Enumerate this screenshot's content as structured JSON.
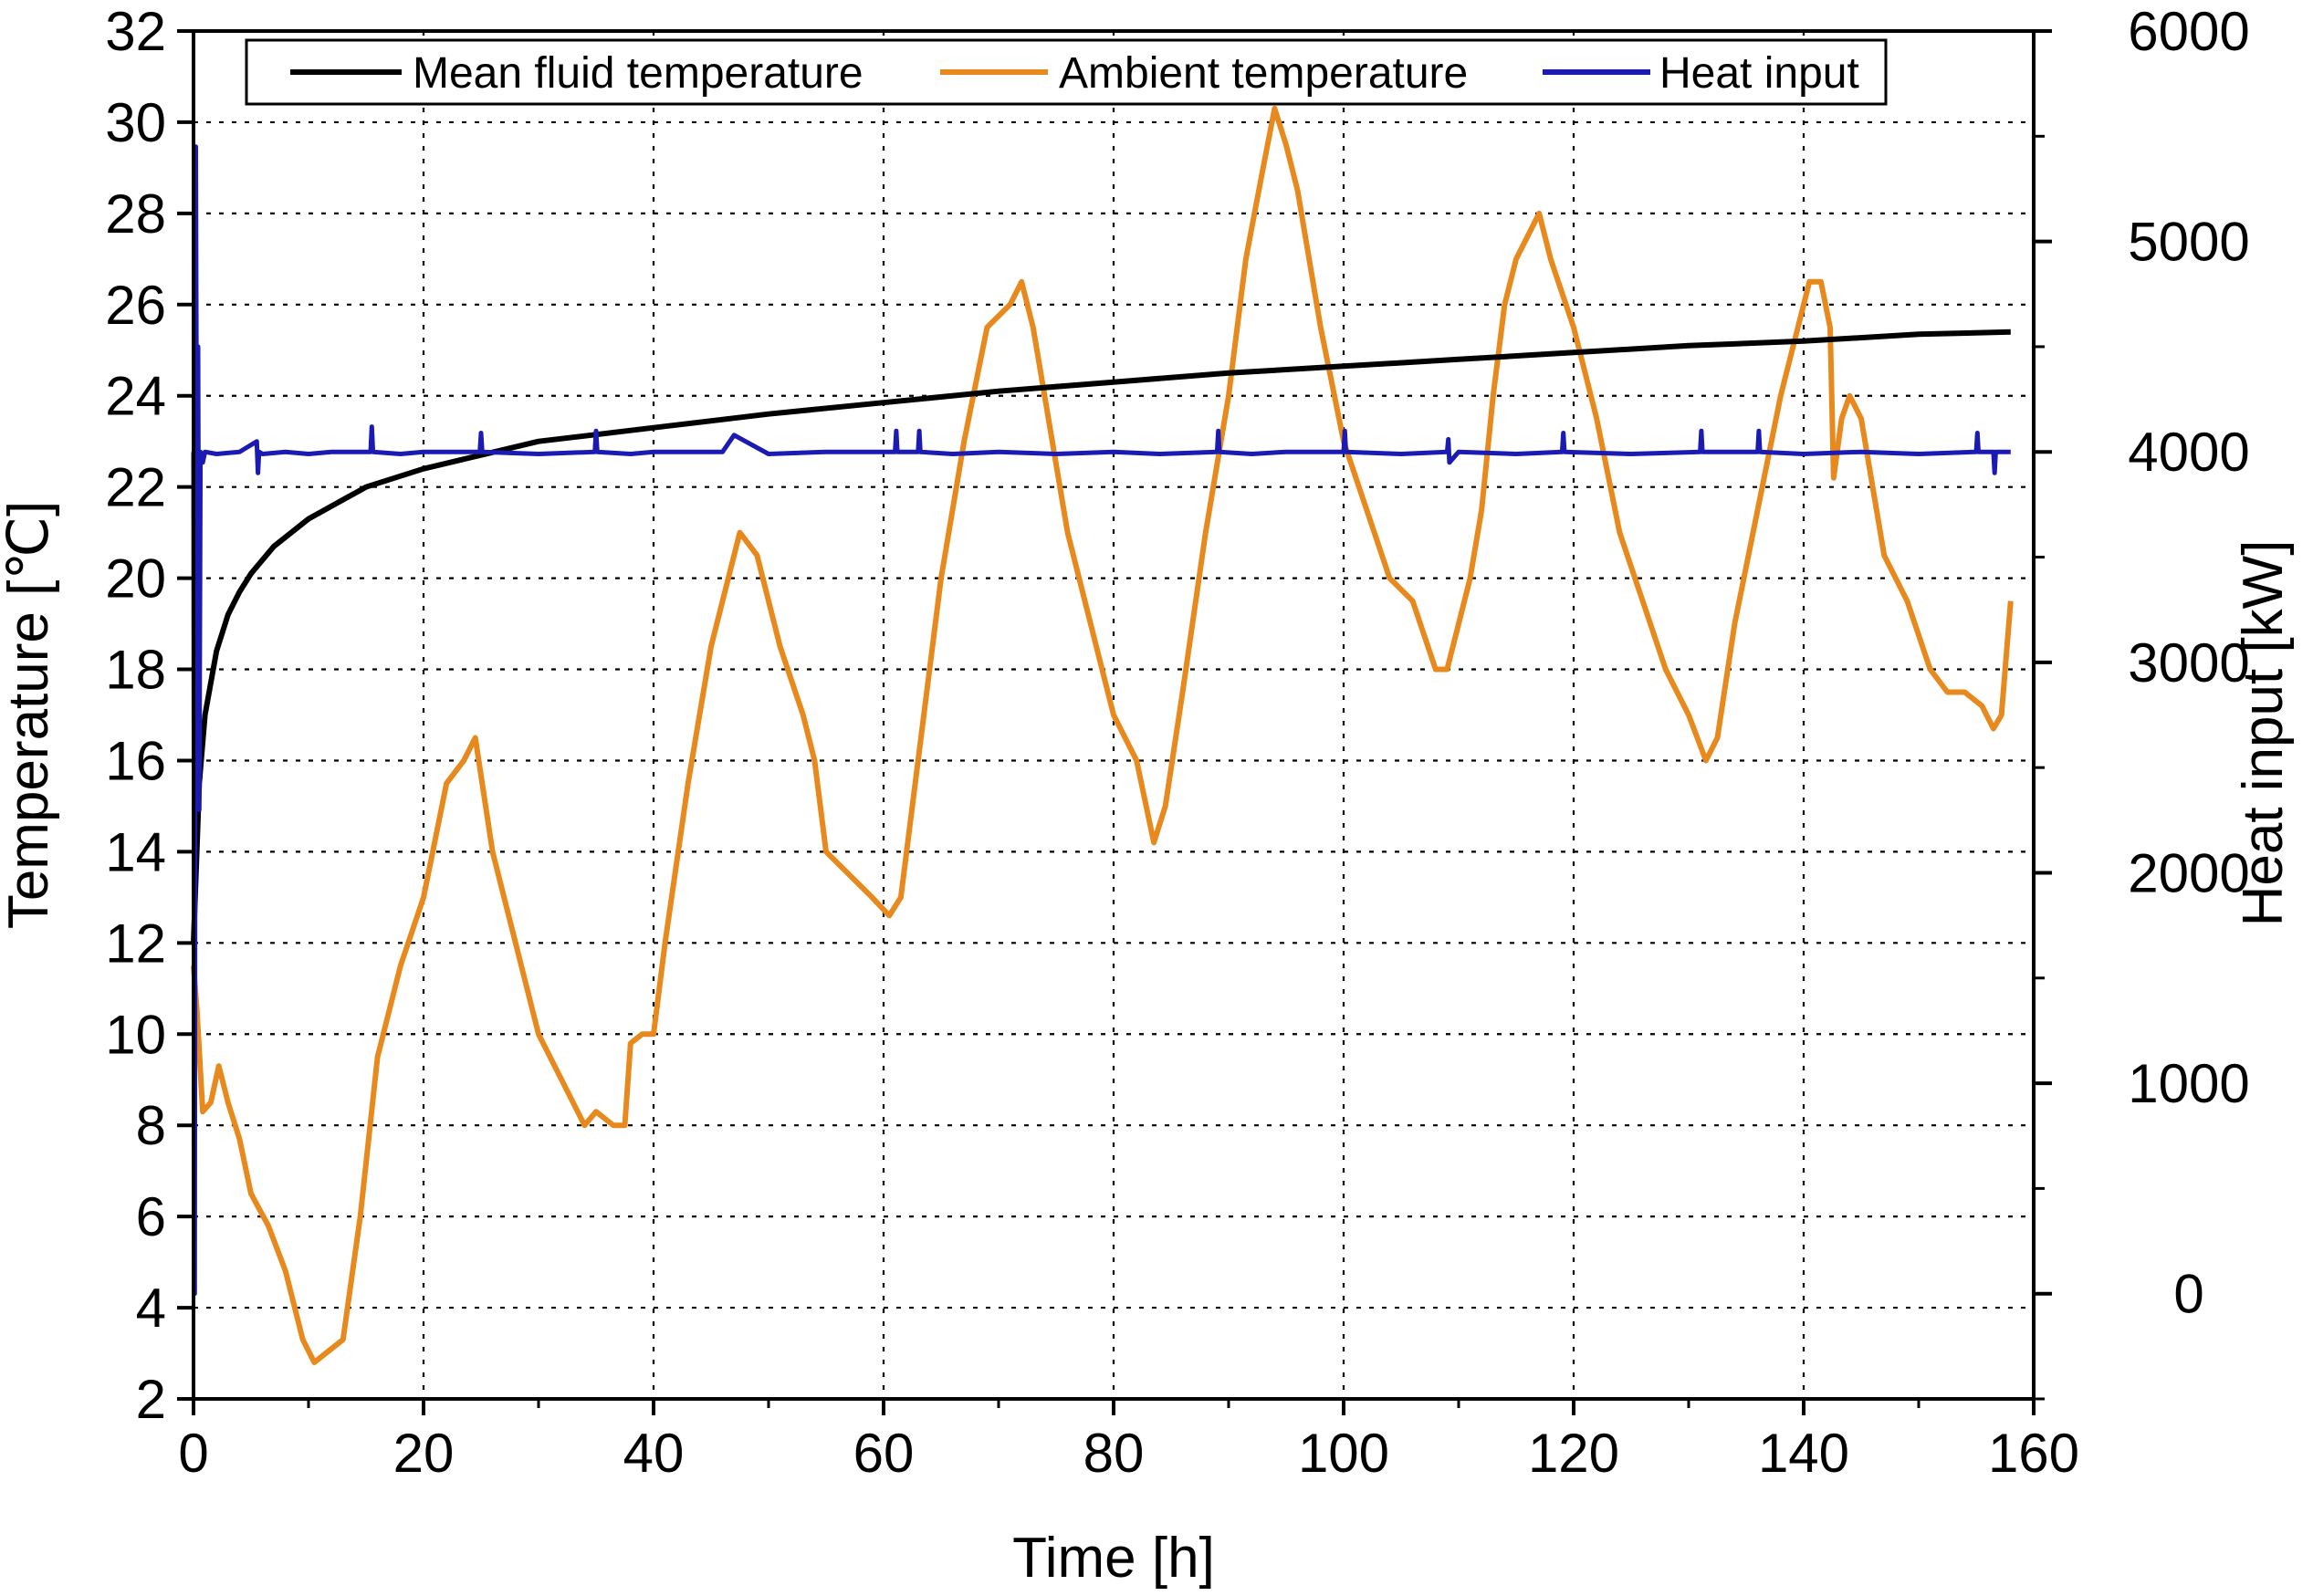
{
  "chart_data": {
    "type": "line",
    "title": "",
    "xlabel": "Time [h]",
    "ylabel_left": "Temperature [℃]",
    "ylabel_right": "Heat input [kW]",
    "xlim": [
      0,
      160
    ],
    "ylim_left": [
      2,
      32
    ],
    "ylim_right": [
      -500,
      6000
    ],
    "xticks": [
      0,
      20,
      40,
      60,
      80,
      100,
      120,
      140,
      160
    ],
    "yticks_left": [
      2,
      4,
      6,
      8,
      10,
      12,
      14,
      16,
      18,
      20,
      22,
      24,
      26,
      28,
      30,
      32
    ],
    "yticks_right": [
      0,
      1000,
      2000,
      3000,
      4000,
      5000,
      6000
    ],
    "grid": true,
    "legend_position": "top",
    "series": [
      {
        "name": "Mean fluid temperature",
        "axis": "left",
        "color": "#000000",
        "x": [
          0,
          0.5,
          1,
          2,
          3,
          4,
          5,
          7,
          10,
          15,
          20,
          25,
          30,
          40,
          50,
          60,
          70,
          80,
          90,
          100,
          110,
          120,
          130,
          140,
          150,
          158
        ],
        "y": [
          12.0,
          15.5,
          17.0,
          18.4,
          19.2,
          19.7,
          20.1,
          20.7,
          21.3,
          22.0,
          22.4,
          22.7,
          23.0,
          23.3,
          23.6,
          23.85,
          24.1,
          24.3,
          24.5,
          24.65,
          24.8,
          24.95,
          25.1,
          25.2,
          25.35,
          25.4
        ]
      },
      {
        "name": "Ambient temperature",
        "axis": "left",
        "color": "#E8891E",
        "x": [
          0,
          0.3,
          0.8,
          1.5,
          2.2,
          3,
          4,
          5,
          6.5,
          8,
          9.5,
          10.5,
          11.5,
          13,
          14.5,
          16,
          18,
          20,
          22,
          23.5,
          24.5,
          26,
          28,
          30,
          32,
          34,
          35,
          36.5,
          37.5,
          38,
          39,
          40,
          41,
          43,
          45,
          46.5,
          47.5,
          49,
          51,
          53,
          54,
          55,
          57,
          59,
          60.5,
          61.5,
          63,
          65,
          67,
          69,
          71,
          72,
          73,
          74,
          76,
          78,
          80,
          82,
          83.5,
          84.5,
          86,
          88,
          90,
          91.5,
          93,
          94,
          95,
          96,
          98,
          100,
          102,
          104,
          106,
          108,
          109,
          110,
          111,
          112,
          113,
          114,
          115,
          116,
          117,
          118,
          120,
          122,
          124,
          126,
          128,
          130,
          131.5,
          132.5,
          134,
          136,
          138,
          139.5,
          140.5,
          141.5,
          142.3,
          142.6,
          143.3,
          144,
          145,
          147,
          149,
          151,
          152.5,
          154,
          155.5,
          156.5,
          157.2,
          158
        ],
        "y": [
          11.5,
          10.5,
          8.3,
          8.5,
          9.3,
          8.5,
          7.7,
          6.5,
          5.8,
          4.8,
          3.3,
          2.8,
          3.0,
          3.3,
          6.0,
          9.5,
          11.5,
          13.0,
          15.5,
          16.0,
          16.5,
          14.0,
          12.0,
          10.0,
          9.0,
          8.0,
          8.3,
          8.0,
          8.0,
          9.8,
          10.0,
          10.0,
          12.0,
          15.5,
          18.5,
          20.0,
          21.0,
          20.5,
          18.5,
          17.0,
          16.0,
          14.0,
          13.5,
          13.0,
          12.6,
          13.0,
          16.0,
          20.0,
          23.0,
          25.5,
          26.0,
          26.5,
          25.5,
          24.0,
          21.0,
          19.0,
          17.0,
          16.0,
          14.2,
          15.0,
          17.5,
          21.0,
          24.0,
          27.0,
          29.0,
          30.3,
          29.5,
          28.5,
          25.5,
          23.0,
          21.5,
          20.0,
          19.5,
          18.0,
          18.0,
          19.0,
          20.0,
          21.5,
          24.0,
          26.0,
          27.0,
          27.5,
          28.0,
          27.0,
          25.5,
          23.5,
          21.0,
          19.5,
          18.0,
          17.0,
          16.0,
          16.5,
          19.0,
          21.5,
          24.0,
          25.5,
          26.5,
          26.5,
          25.5,
          22.2,
          23.5,
          24.0,
          23.5,
          20.5,
          19.5,
          18.0,
          17.5,
          17.5,
          17.2,
          16.7,
          17.0,
          19.5
        ]
      },
      {
        "name": "Heat input",
        "axis": "right",
        "color": "#1B1BB3",
        "x": [
          0,
          0.1,
          0.2,
          0.3,
          0.4,
          0.5,
          0.6,
          0.8,
          1.0,
          2,
          4,
          5.5,
          5.6,
          5.7,
          6,
          8,
          10,
          12,
          15.4,
          15.5,
          15.6,
          18,
          20,
          24.9,
          25,
          25.1,
          30,
          34.9,
          35,
          35.1,
          38,
          40,
          46,
          47,
          50,
          55,
          61,
          61.1,
          61.2,
          63,
          63.1,
          63.2,
          66,
          70,
          75,
          80,
          84,
          89,
          89.1,
          89.2,
          92,
          95,
          100,
          100.1,
          100.2,
          105,
          109,
          109.1,
          109.2,
          110,
          115,
          119,
          119.1,
          119.2,
          125,
          131,
          131.1,
          131.2,
          136,
          136.1,
          136.2,
          140,
          145,
          150,
          155,
          155.1,
          155.2,
          156.5,
          156.6,
          156.7,
          158
        ],
        "y": [
          4000,
          0,
          5450,
          3500,
          4500,
          2300,
          4000,
          3950,
          4000,
          3990,
          4000,
          4050,
          3900,
          4000,
          3990,
          4000,
          3990,
          4000,
          4000,
          4120,
          4000,
          3990,
          4000,
          4000,
          4090,
          4000,
          3990,
          4000,
          4100,
          4000,
          3990,
          4000,
          4000,
          4080,
          3990,
          4000,
          4000,
          4100,
          4000,
          4000,
          4100,
          4000,
          3990,
          4000,
          3990,
          4000,
          3990,
          4000,
          4100,
          4000,
          3990,
          4000,
          4000,
          4100,
          4000,
          3990,
          4000,
          4060,
          3950,
          4000,
          3990,
          4000,
          4090,
          4000,
          3990,
          4000,
          4100,
          4000,
          4000,
          4100,
          4000,
          3990,
          4000,
          3990,
          4000,
          4090,
          4000,
          4000,
          3900,
          4000,
          4000
        ]
      }
    ]
  }
}
